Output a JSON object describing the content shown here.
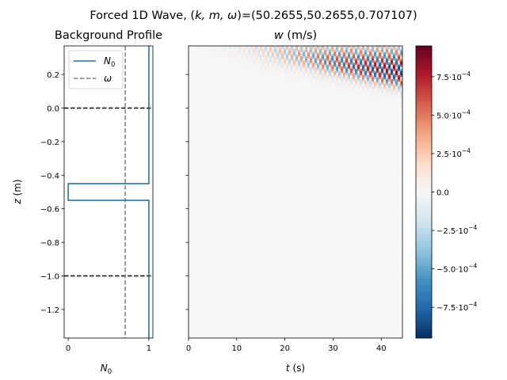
{
  "figure": {
    "title_prefix": "Forced 1D Wave, (",
    "title_vars": "k, m, ω",
    "title_suffix": ")=(50.2655,50.2655,0.707107)"
  },
  "chart_data": [
    {
      "type": "line",
      "title": "Background Profile",
      "xlabel_base": "N",
      "xlabel_sub": "0",
      "ylabel_var": "z",
      "ylabel_unit": " (m)",
      "xlim": [
        -0.05,
        1.05
      ],
      "ylim": [
        -1.37,
        0.37
      ],
      "xticks": [
        {
          "v": 0,
          "label": "0"
        },
        {
          "v": 1,
          "label": "1"
        }
      ],
      "yticks": [
        {
          "v": 0.2,
          "label": "0.2"
        },
        {
          "v": 0.0,
          "label": "0.0"
        },
        {
          "v": -0.2,
          "label": "−0.2"
        },
        {
          "v": -0.4,
          "label": "−0.4"
        },
        {
          "v": -0.6,
          "label": "−0.6"
        },
        {
          "v": -0.8,
          "label": "−0.8"
        },
        {
          "v": -1.0,
          "label": "−1.0"
        },
        {
          "v": -1.2,
          "label": "−1.2"
        }
      ],
      "legend_position": "top-left",
      "series": [
        {
          "name_base": "N",
          "name_sub": "0",
          "color": "#1f77b4",
          "style": "solid",
          "points": [
            [
              1,
              0.37
            ],
            [
              1,
              -0.45
            ],
            [
              0,
              -0.45
            ],
            [
              0,
              -0.55
            ],
            [
              1,
              -0.55
            ],
            [
              1,
              -1.37
            ]
          ]
        },
        {
          "name": "ω",
          "color": "#808080",
          "style": "dashed",
          "value": 0.707107
        }
      ],
      "hlines": [
        {
          "y": 0.0,
          "color": "#000000",
          "style": "dashed"
        },
        {
          "y": -1.0,
          "color": "#000000",
          "style": "dashed"
        }
      ]
    },
    {
      "type": "heatmap",
      "title_var": "w",
      "title_unit": " (m/s)",
      "xlabel_var": "t",
      "xlabel_unit": " (s)",
      "xlim": [
        0,
        44.4
      ],
      "ylim": [
        -1.37,
        0.37
      ],
      "xticks": [
        {
          "v": 0,
          "label": "0"
        },
        {
          "v": 10,
          "label": "10"
        },
        {
          "v": 20,
          "label": "20"
        },
        {
          "v": 30,
          "label": "30"
        },
        {
          "v": 40,
          "label": "40"
        }
      ],
      "colormap": "RdBu_r",
      "clim": [
        -0.00095,
        0.00095
      ],
      "colorbar_ticks": [
        {
          "v": 0.00075,
          "mant": "7.5",
          "exp": "−4"
        },
        {
          "v": 0.0005,
          "mant": "5.0",
          "exp": "−4"
        },
        {
          "v": 0.00025,
          "mant": "2.5",
          "exp": "−4"
        },
        {
          "v": 0.0,
          "plain": "0.0"
        },
        {
          "v": -0.00025,
          "mant": "−2.5",
          "exp": "−4"
        },
        {
          "v": -0.0005,
          "mant": "−5.0",
          "exp": "−4"
        },
        {
          "v": -0.00075,
          "mant": "−7.5",
          "exp": "−4"
        }
      ],
      "wave": {
        "k": 50.2655,
        "m": 50.2655,
        "omega": 0.707107,
        "amplitude": 0.00095
      }
    }
  ]
}
